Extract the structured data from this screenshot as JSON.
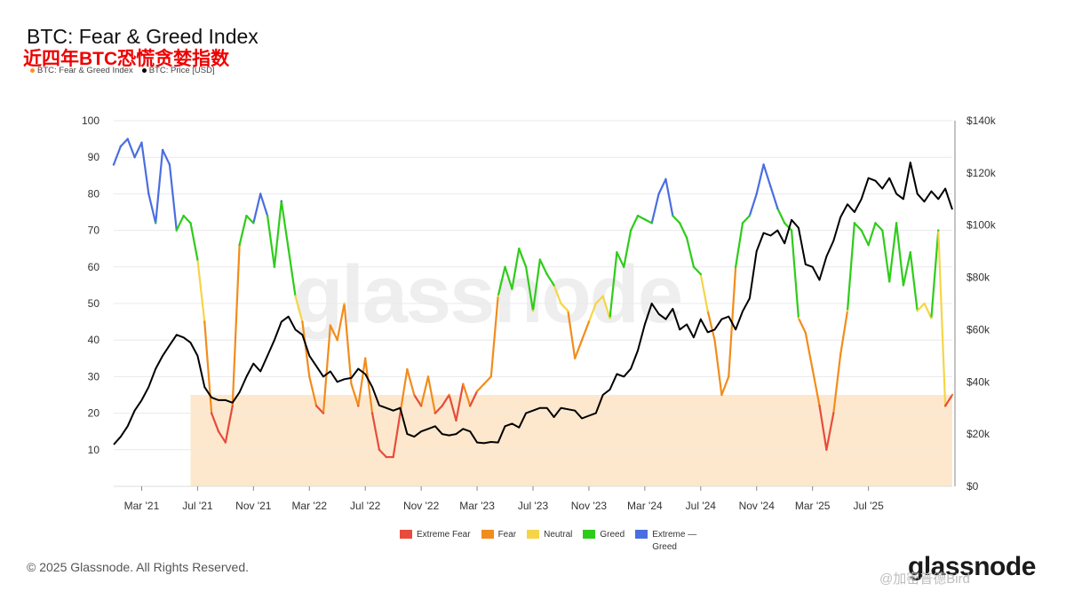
{
  "header": {
    "title": "BTC: Fear & Greed Index",
    "subtitle": "近四年BTC恐慌贪婪指数",
    "legend": [
      {
        "label": "BTC: Fear & Greed Index",
        "color": "#f7931a"
      },
      {
        "label": "BTC: Price [USD]",
        "color": "#000000"
      }
    ]
  },
  "background_watermark": "glassnode",
  "footer": {
    "copyright": "© 2025 Glassnode. All Rights Reserved.",
    "brand": "glassnode",
    "social_watermark": "@加密普德Bird"
  },
  "chart_data": {
    "type": "line",
    "title": "BTC: Fear & Greed Index",
    "x_labels": [
      "Mar '21",
      "Jul '21",
      "Nov '21",
      "Mar '22",
      "Jul '22",
      "Nov '22",
      "Mar '23",
      "Jul '23",
      "Nov '23",
      "Mar '24",
      "Jul '24",
      "Nov '24",
      "Mar '25",
      "Jul '25"
    ],
    "left_axis": {
      "ticks": [
        "100",
        "90",
        "80",
        "70",
        "60",
        "50",
        "40",
        "30",
        "20",
        "10"
      ],
      "range": [
        0,
        100
      ]
    },
    "right_axis": {
      "ticks": [
        "$140k",
        "$120k",
        "$100k",
        "$80k",
        "$60k",
        "$40k",
        "$20k",
        "$0"
      ],
      "range": [
        0,
        140000
      ]
    },
    "x_range_months": [
      0,
      60
    ],
    "fear_zone_max": 25,
    "fear_zone_start_month": 5.5,
    "bands": [
      {
        "name": "Extreme Fear",
        "min": 0,
        "max": 25,
        "color": "#e74c3c"
      },
      {
        "name": "Fear",
        "min": 25,
        "max": 46,
        "color": "#f28c1c"
      },
      {
        "name": "Neutral",
        "min": 46,
        "max": 54,
        "color": "#f5d547"
      },
      {
        "name": "Greed",
        "min": 54,
        "max": 75,
        "color": "#2ecc1a"
      },
      {
        "name": "Extreme Greed",
        "min": 75,
        "max": 100,
        "color": "#4a6ee0"
      }
    ],
    "legend": [
      "Extreme Fear",
      "Fear",
      "Neutral",
      "Greed",
      "Extreme — Greed"
    ],
    "price_series": {
      "name": "BTC: Price [USD]",
      "months": [
        0,
        0.5,
        1,
        1.5,
        2,
        2.5,
        3,
        3.5,
        4,
        4.5,
        5,
        5.5,
        6,
        6.5,
        7,
        7.5,
        8,
        8.5,
        9,
        9.5,
        10,
        10.5,
        11,
        11.5,
        12,
        12.5,
        13,
        13.5,
        14,
        14.5,
        15,
        15.5,
        16,
        16.5,
        17,
        17.5,
        18,
        18.5,
        19,
        19.5,
        20,
        20.5,
        21,
        21.5,
        22,
        22.5,
        23,
        23.5,
        24,
        24.5,
        25,
        25.5,
        26,
        26.5,
        27,
        27.5,
        28,
        28.5,
        29,
        29.5,
        30,
        30.5,
        31,
        31.5,
        32,
        32.5,
        33,
        33.5,
        34,
        34.5,
        35,
        35.5,
        36,
        36.5,
        37,
        37.5,
        38,
        38.5,
        39,
        39.5,
        40,
        40.5,
        41,
        41.5,
        42,
        42.5,
        43,
        43.5,
        44,
        44.5,
        45,
        45.5,
        46,
        46.5,
        47,
        47.5,
        48,
        48.5,
        49,
        49.5,
        50,
        50.5,
        51,
        51.5,
        52,
        52.5,
        53,
        53.5,
        54,
        54.5,
        55,
        55.5,
        56,
        56.5,
        57,
        57.5,
        58,
        58.5,
        59,
        59.5,
        60
      ],
      "values": [
        16000,
        19000,
        23000,
        29000,
        33000,
        38000,
        45000,
        50000,
        54000,
        58000,
        57000,
        55000,
        50000,
        38000,
        34000,
        33000,
        33000,
        32000,
        36000,
        42000,
        47000,
        44000,
        50000,
        56000,
        63000,
        65000,
        60000,
        58000,
        50000,
        46000,
        42000,
        44000,
        40000,
        41000,
        41500,
        45000,
        43000,
        38000,
        31000,
        30000,
        29000,
        30000,
        20000,
        19000,
        21000,
        22000,
        23000,
        20000,
        19500,
        20000,
        22000,
        21000,
        16800,
        16500,
        17000,
        16800,
        23000,
        24000,
        22500,
        28000,
        29000,
        30000,
        30000,
        26500,
        30000,
        29500,
        29000,
        26000,
        27000,
        28000,
        35000,
        37000,
        43000,
        42000,
        45000,
        52000,
        62000,
        70000,
        66000,
        64000,
        68000,
        60000,
        62000,
        57000,
        64000,
        59000,
        60000,
        64000,
        65000,
        60000,
        67000,
        72000,
        90000,
        97000,
        96000,
        98000,
        93000,
        102000,
        99000,
        85000,
        84000,
        79000,
        88000,
        94000,
        103000,
        108000,
        105000,
        110000,
        118000,
        117000,
        114000,
        118000,
        112000,
        110000,
        124000,
        112000,
        109000,
        113000,
        110000,
        114000,
        106000
      ],
      "axis": "right"
    },
    "fgi_series": {
      "name": "BTC: Fear & Greed Index",
      "months": [
        0,
        0.5,
        1,
        1.5,
        2,
        2.5,
        3,
        3.5,
        4,
        4.5,
        5,
        5.5,
        6,
        6.5,
        7,
        7.5,
        8,
        8.5,
        9,
        9.5,
        10,
        10.5,
        11,
        11.5,
        12,
        12.5,
        13,
        13.5,
        14,
        14.5,
        15,
        15.5,
        16,
        16.5,
        17,
        17.5,
        18,
        18.5,
        19,
        19.5,
        20,
        20.5,
        21,
        21.5,
        22,
        22.5,
        23,
        23.5,
        24,
        24.5,
        25,
        25.5,
        26,
        26.5,
        27,
        27.5,
        28,
        28.5,
        29,
        29.5,
        30,
        30.5,
        31,
        31.5,
        32,
        32.5,
        33,
        33.5,
        34,
        34.5,
        35,
        35.5,
        36,
        36.5,
        37,
        37.5,
        38,
        38.5,
        39,
        39.5,
        40,
        40.5,
        41,
        41.5,
        42,
        42.5,
        43,
        43.5,
        44,
        44.5,
        45,
        45.5,
        46,
        46.5,
        47,
        47.5,
        48,
        48.5,
        49,
        49.5,
        50,
        50.5,
        51,
        51.5,
        52,
        52.5,
        53,
        53.5,
        54,
        54.5,
        55,
        55.5,
        56,
        56.5,
        57,
        57.5,
        58,
        58.5,
        59,
        59.5,
        60
      ],
      "values": [
        88,
        93,
        95,
        90,
        94,
        80,
        72,
        92,
        88,
        70,
        74,
        72,
        62,
        45,
        20,
        15,
        12,
        22,
        66,
        74,
        72,
        80,
        74,
        60,
        78,
        65,
        52,
        45,
        30,
        22,
        20,
        44,
        40,
        50,
        28,
        22,
        35,
        20,
        10,
        8,
        8,
        20,
        32,
        25,
        22,
        30,
        20,
        22,
        25,
        18,
        28,
        22,
        26,
        28,
        30,
        52,
        60,
        54,
        65,
        60,
        48,
        62,
        58,
        55,
        50,
        48,
        35,
        40,
        45,
        50,
        52,
        46,
        64,
        60,
        70,
        74,
        73,
        72,
        80,
        84,
        74,
        72,
        68,
        60,
        58,
        48,
        40,
        25,
        30,
        60,
        72,
        74,
        80,
        88,
        82,
        76,
        72,
        70,
        46,
        42,
        32,
        22,
        10,
        20,
        36,
        48,
        72,
        70,
        66,
        72,
        70,
        56,
        72,
        55,
        64,
        48,
        50,
        46,
        70,
        22,
        25
      ],
      "axis": "left"
    }
  }
}
